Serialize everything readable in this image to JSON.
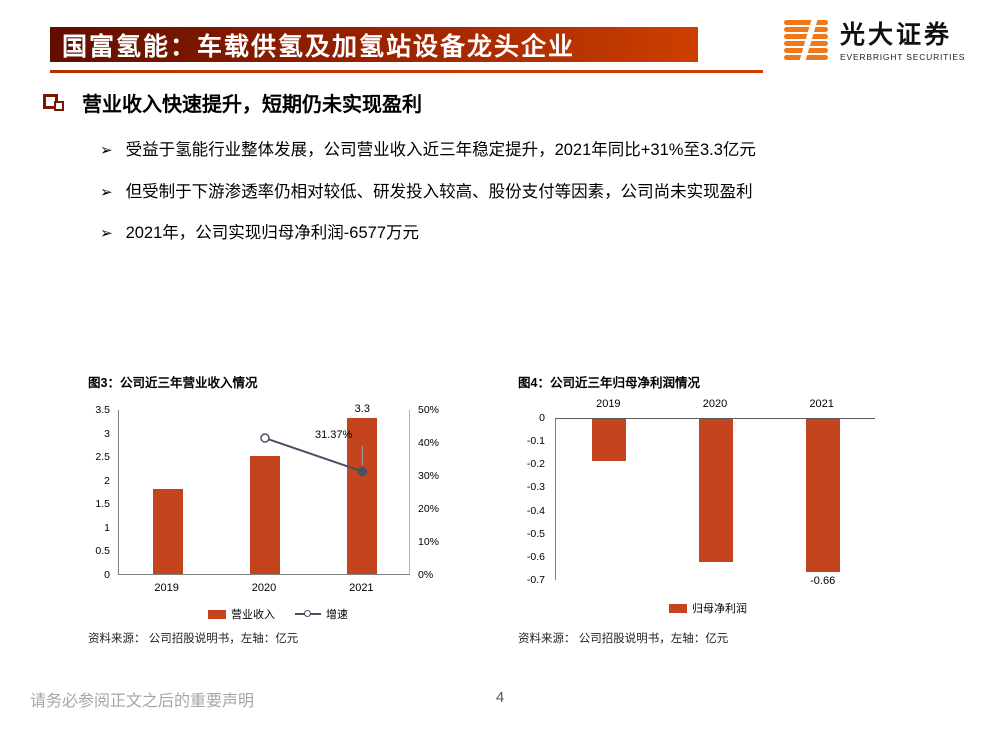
{
  "header": {
    "title": "国富氢能：车载供氢及加氢站设备龙头企业",
    "logo": {
      "name": "光大证券",
      "subtitle": "EVERBRIGHT SECURITIES"
    }
  },
  "section": {
    "heading": "营业收入快速提升，短期仍未实现盈利",
    "bullet_glyph": "➢",
    "bullets": [
      "受益于氢能行业整体发展，公司营业收入近三年稳定提升，2021年同比+31%至3.3亿元",
      "但受制于下游渗透率仍相对较低、研发投入较高、股份支付等因素，公司尚未实现盈利",
      "2021年，公司实现归母净利润-6577万元"
    ]
  },
  "chart_data": [
    {
      "type": "bar",
      "title": "图3：公司近三年营业收入情况",
      "categories": [
        "2019",
        "2020",
        "2021"
      ],
      "series": [
        {
          "name": "营业收入",
          "kind": "bar",
          "axis": "left",
          "values": [
            1.8,
            2.5,
            3.3
          ]
        },
        {
          "name": "增速",
          "kind": "line",
          "axis": "right",
          "values": [
            null,
            41.5,
            31.37
          ]
        }
      ],
      "left_axis": {
        "min": 0,
        "max": 3.5,
        "ticks": [
          "3.5",
          "3",
          "2.5",
          "2",
          "1.5",
          "1",
          "0.5",
          "0"
        ]
      },
      "right_axis": {
        "min": 0,
        "max": 50,
        "ticks": [
          "50%",
          "40%",
          "30%",
          "20%",
          "10%",
          "0%"
        ]
      },
      "data_labels": {
        "bar": [
          null,
          null,
          "3.3"
        ],
        "line": [
          null,
          null,
          "31.37%"
        ]
      },
      "legend_position": "bottom",
      "grid": "off",
      "source": "资料来源： 公司招股说明书，左轴：亿元"
    },
    {
      "type": "bar",
      "title": "图4：公司近三年归母净利润情况",
      "categories": [
        "2019",
        "2020",
        "2021"
      ],
      "series": [
        {
          "name": "归母净利润",
          "kind": "bar",
          "axis": "left",
          "values": [
            -0.18,
            -0.62,
            -0.66
          ]
        }
      ],
      "left_axis": {
        "min": -0.7,
        "max": 0,
        "ticks": [
          "0",
          "-0.1",
          "-0.2",
          "-0.3",
          "-0.4",
          "-0.5",
          "-0.6",
          "-0.7"
        ]
      },
      "data_labels": {
        "bar": [
          null,
          null,
          "-0.66"
        ]
      },
      "legend_position": "bottom",
      "grid": "off",
      "source": "资料来源： 公司招股说明书，左轴：亿元"
    }
  ],
  "footer": {
    "disclaimer": "请务必参阅正文之后的重要声明",
    "page_number": "4"
  },
  "colors": {
    "accent_dark": "#5f0e00",
    "accent": "#c43b00",
    "bar": "#c4441e",
    "line": "#4a5063",
    "axis": "#808080",
    "logo_orange": "#f07818"
  }
}
